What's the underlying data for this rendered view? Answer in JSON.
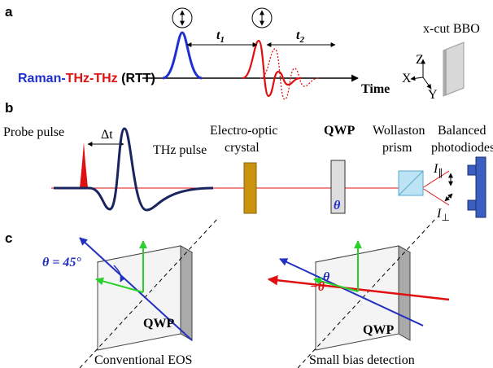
{
  "panel_a": {
    "label": "a",
    "title": [
      "Raman-",
      "THz-",
      "THz",
      " (RTT)"
    ],
    "t1": {
      "symbol": "t",
      "subscript": "1"
    },
    "t2": {
      "symbol": "t",
      "subscript": "2"
    },
    "axis_label": "Time",
    "crystal_label": "x-cut BBO",
    "axes": [
      "Z",
      "X",
      "Y"
    ]
  },
  "panel_b": {
    "label": "b",
    "probe": "Probe pulse",
    "delay": "Δt",
    "thz": "THz pulse",
    "eo_crystal": [
      "Electro-optic",
      "crystal"
    ],
    "qwp": "QWP",
    "theta": "θ",
    "wollaston": [
      "Wollaston",
      "prism"
    ],
    "detector": [
      "Balanced",
      "photodiodes"
    ],
    "i_par": {
      "symbol": "I",
      "subscript": "∥"
    },
    "i_perp": {
      "symbol": "I",
      "subscript": "⊥"
    }
  },
  "panel_c": {
    "label": "c",
    "left": {
      "angle": "θ = 45°",
      "plate": "QWP",
      "caption": "Conventional EOS"
    },
    "right": {
      "theta": "θ",
      "neg_theta": "−θ",
      "plate": "QWP",
      "caption": "Small bias detection"
    }
  }
}
